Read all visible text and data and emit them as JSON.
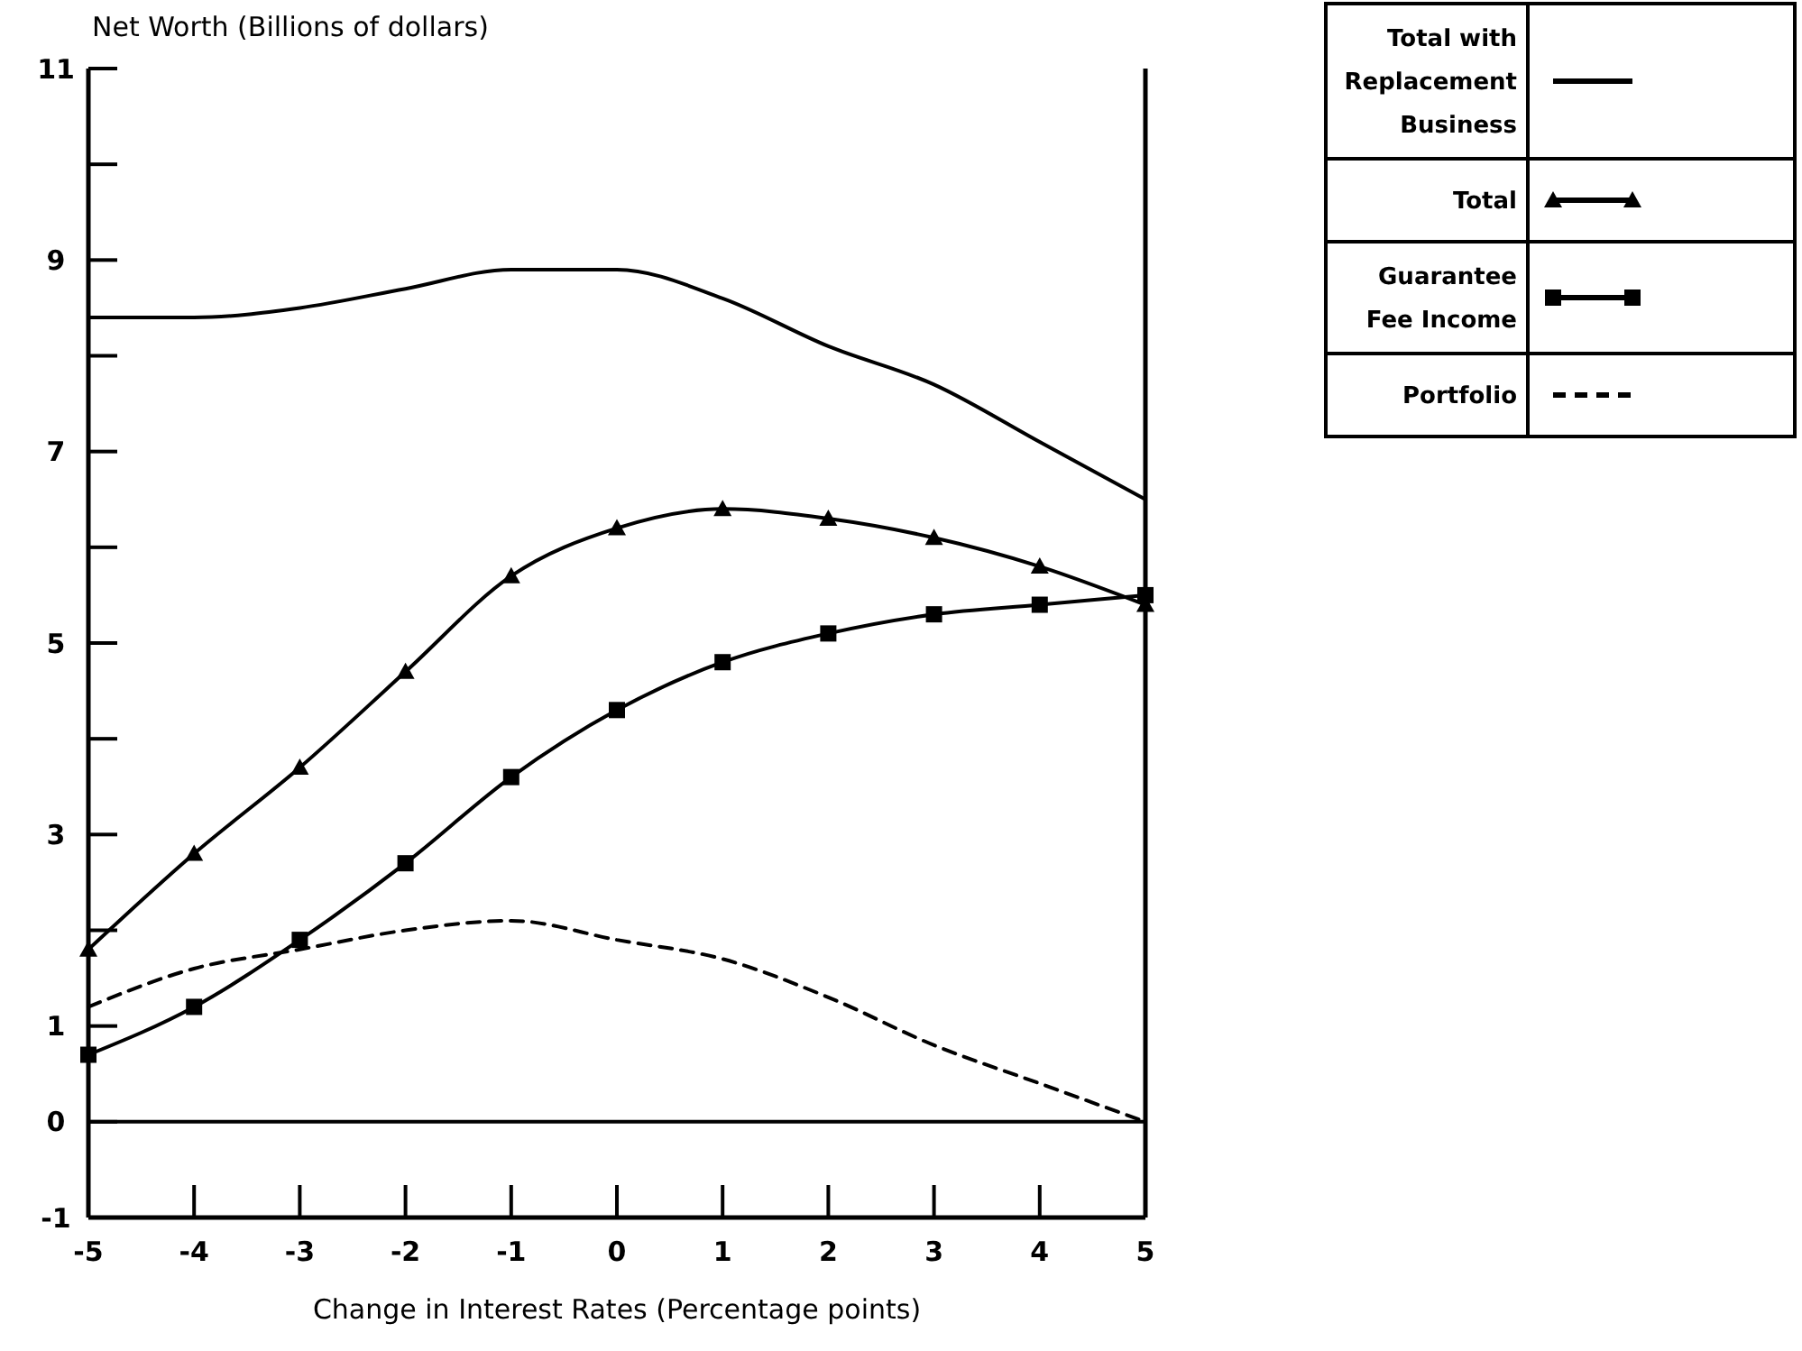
{
  "chart_data": {
    "type": "line",
    "xlabel": "Change in Interest Rates (Percentage points)",
    "ylabel": "Net Worth (Billions of dollars)",
    "x": [
      -5,
      -4,
      -3,
      -2,
      -1,
      0,
      1,
      2,
      3,
      4,
      5
    ],
    "xlim": [
      -5,
      5
    ],
    "xticks": [
      -5,
      -4,
      -3,
      -2,
      -1,
      0,
      1,
      2,
      3,
      4,
      5
    ],
    "ylim": [
      -1,
      11
    ],
    "yticks": [
      -1,
      0,
      1,
      {
        "value": 2,
        "label": null
      },
      3,
      {
        "value": 4,
        "label": null
      },
      5,
      {
        "value": 6,
        "label": null
      },
      7,
      {
        "value": 8,
        "label": null
      },
      9,
      {
        "value": 10,
        "label": null
      },
      11
    ],
    "grid": false,
    "legend": "top right",
    "ref_lines": [
      {
        "axis": "y",
        "value": 0,
        "color": "#000000"
      }
    ],
    "series": [
      {
        "name": "Total with Replacement Business",
        "color": "#000000",
        "marker": "none",
        "line_style": "solid",
        "values": [
          8.4,
          8.4,
          8.5,
          8.7,
          8.9,
          8.9,
          8.6,
          8.1,
          7.7,
          7.1,
          6.5
        ]
      },
      {
        "name": "Total",
        "color": "#000000",
        "marker": "triangle",
        "line_style": "solid",
        "values": [
          1.8,
          2.8,
          3.7,
          4.7,
          5.7,
          6.2,
          6.4,
          6.3,
          6.1,
          5.8,
          5.4
        ]
      },
      {
        "name": "Guarantee Fee Income",
        "color": "#000000",
        "marker": "square",
        "line_style": "solid",
        "values": [
          0.7,
          1.2,
          1.9,
          2.7,
          3.6,
          4.3,
          4.8,
          5.1,
          5.3,
          5.4,
          5.5
        ]
      },
      {
        "name": "Portfolio",
        "color": "#000000",
        "marker": "none",
        "line_style": "dashed",
        "values": [
          1.2,
          1.6,
          1.8,
          2.0,
          2.1,
          1.9,
          1.7,
          1.3,
          0.8,
          0.4,
          0.0
        ]
      }
    ]
  }
}
